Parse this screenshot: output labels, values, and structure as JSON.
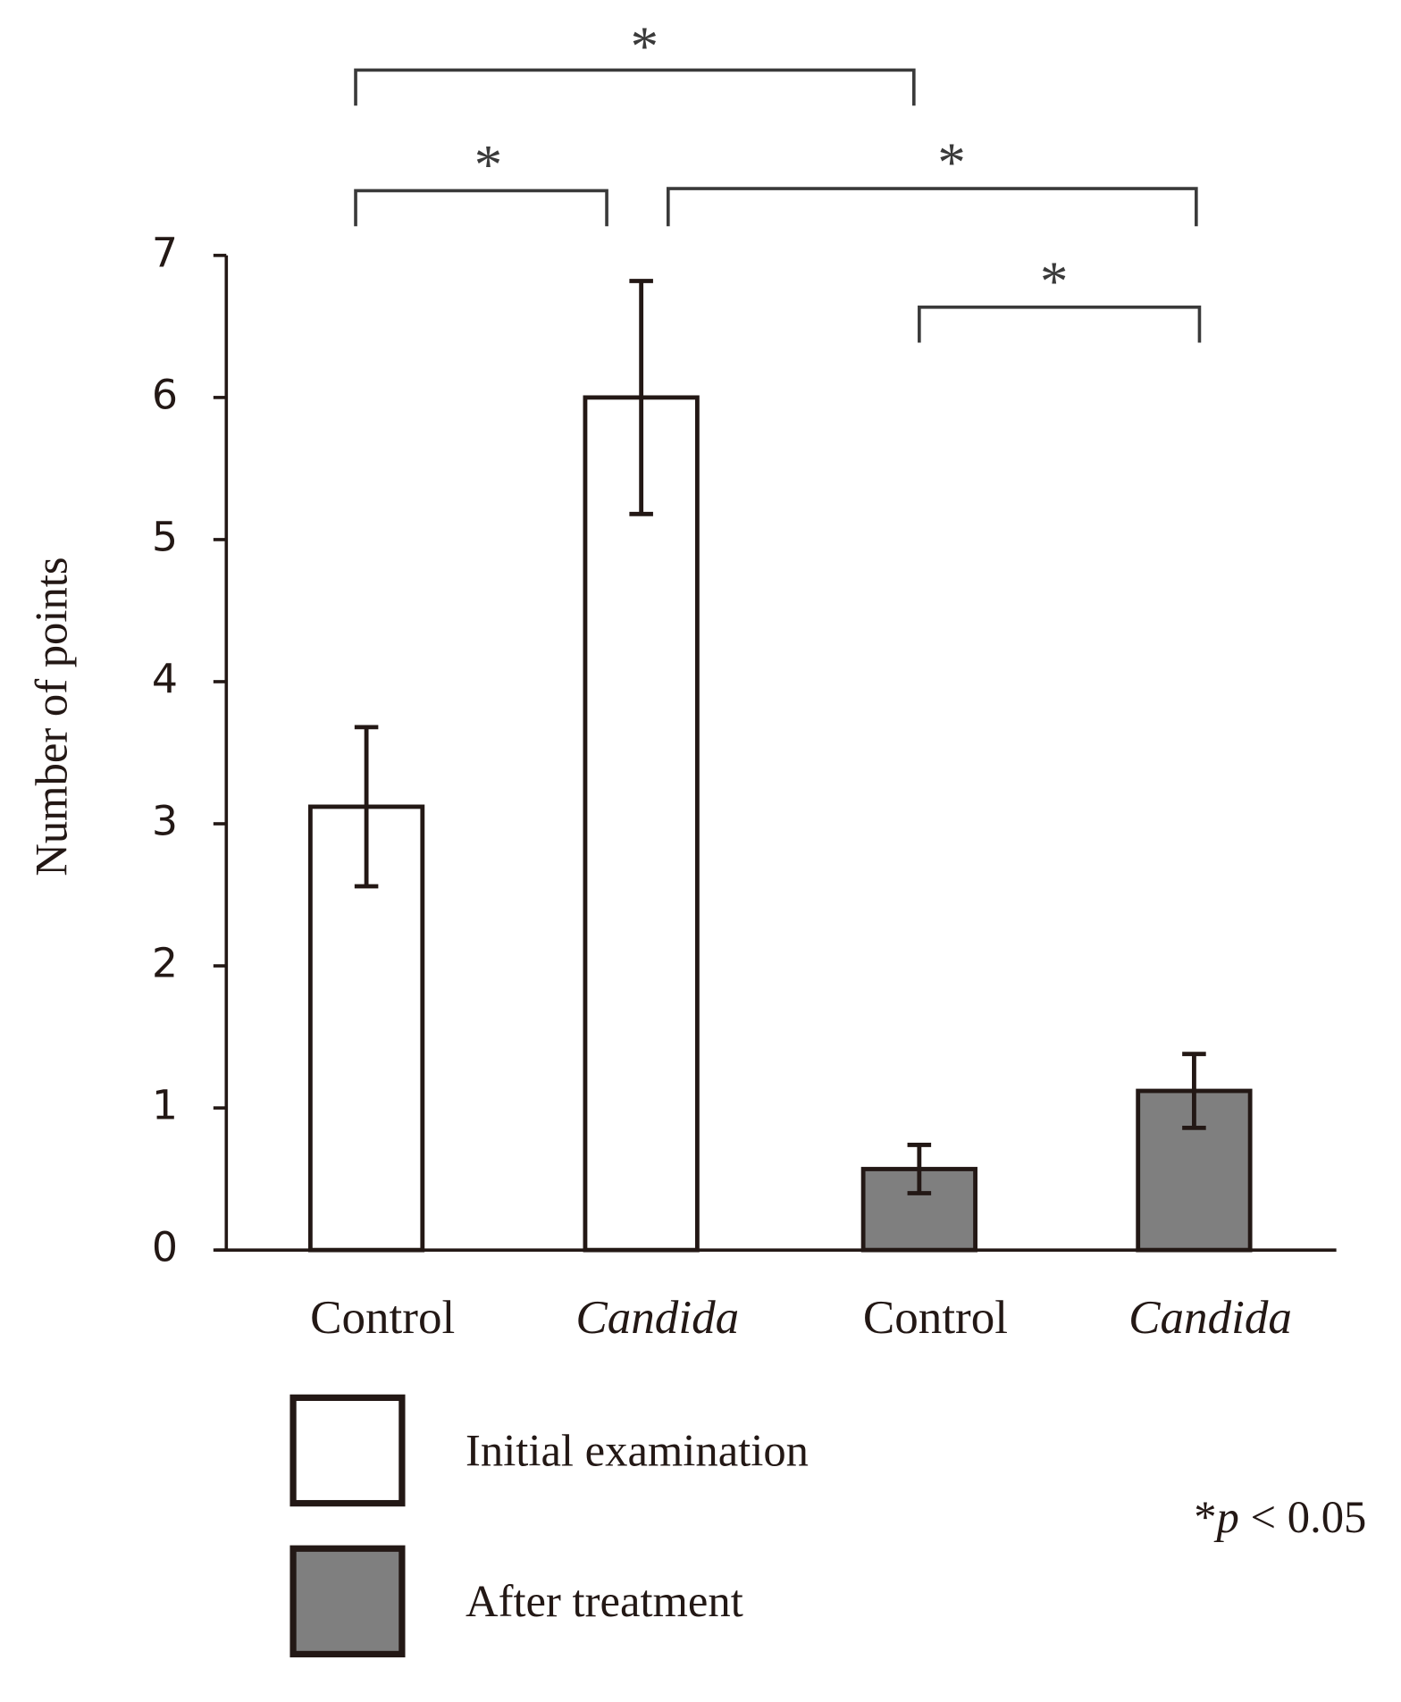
{
  "chart_data": {
    "type": "bar",
    "y_label": "Number of points",
    "categories": [
      "Control",
      "Candida",
      "Control",
      "Candida"
    ],
    "series": [
      {
        "name": "Initial examination",
        "color": "#ffffff",
        "values": [
          3.12,
          6.0,
          null,
          null
        ],
        "errors": [
          0.56,
          0.82,
          null,
          null
        ]
      },
      {
        "name": "After treatment",
        "color": "#7f7f7f",
        "values": [
          null,
          null,
          0.57,
          1.12
        ],
        "errors": [
          null,
          null,
          0.17,
          0.26
        ]
      }
    ],
    "ylim": [
      0,
      7
    ],
    "yticks": [
      0,
      1,
      2,
      3,
      4,
      5,
      6,
      7
    ],
    "annotations": [
      "*",
      "*",
      "*",
      "*"
    ],
    "note": [
      "*",
      "p",
      " < 0.05"
    ]
  }
}
